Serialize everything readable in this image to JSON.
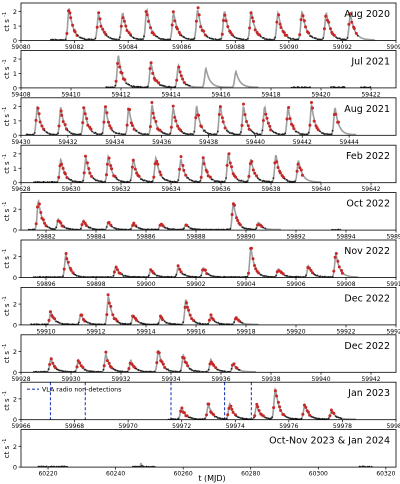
{
  "chart_data": {
    "type": "line",
    "xlabel": "t (MJD)",
    "ylabel_text": "ct s",
    "ylabel_exp": "-1",
    "colors": {
      "model": "#9e9e9e",
      "data": "#c62828",
      "nondet": "#1f3fbf"
    },
    "panels": [
      {
        "title": "Aug 2020",
        "xlim": [
          59080,
          59094
        ],
        "ylim": [
          0,
          2.6
        ],
        "yticks": [
          0,
          1,
          2
        ],
        "xticks": [
          59080,
          59082,
          59084,
          59086,
          59088,
          59090,
          59092,
          59094
        ],
        "peaks": [
          {
            "t": 59081.8,
            "a": 2.2
          },
          {
            "t": 59082.9,
            "a": 1.8
          },
          {
            "t": 59083.8,
            "a": 1.9
          },
          {
            "t": 59084.7,
            "a": 2.1
          },
          {
            "t": 59085.7,
            "a": 1.9
          },
          {
            "t": 59086.6,
            "a": 2.1
          },
          {
            "t": 59087.6,
            "a": 2.0
          },
          {
            "t": 59088.6,
            "a": 2.0
          },
          {
            "t": 59089.6,
            "a": 1.9
          },
          {
            "t": 59090.5,
            "a": 2.0
          },
          {
            "t": 59091.4,
            "a": 1.9
          },
          {
            "t": 59092.3,
            "a": 1.8
          }
        ],
        "obs": [
          [
            59081.1,
            59092.6
          ]
        ],
        "nondet": []
      },
      {
        "title": "Jul 2021",
        "xlim": [
          59408,
          59423
        ],
        "ylim": [
          0,
          2.6
        ],
        "yticks": [
          0,
          1,
          2
        ],
        "xticks": [
          59408,
          59410,
          59412,
          59414,
          59416,
          59418,
          59420,
          59422
        ],
        "peaks": [
          {
            "t": 59411.9,
            "a": 2.2
          },
          {
            "t": 59413.2,
            "a": 1.7
          },
          {
            "t": 59414.3,
            "a": 1.5
          },
          {
            "t": 59415.4,
            "a": 1.3
          },
          {
            "t": 59416.6,
            "a": 1.1
          }
        ],
        "obs": [
          [
            59411.4,
            59414.8
          ],
          [
            59418.8,
            59419.6
          ],
          [
            59420.4,
            59421.0
          ],
          [
            59421.6,
            59422.0
          ]
        ],
        "nondet": []
      },
      {
        "title": "Aug 2021",
        "xlim": [
          59430,
          59446
        ],
        "ylim": [
          0,
          2.6
        ],
        "yticks": [
          0,
          1,
          2
        ],
        "xticks": [
          59430,
          59432,
          59434,
          59436,
          59438,
          59440,
          59442,
          59444
        ],
        "peaks": [
          {
            "t": 59430.7,
            "a": 2.0
          },
          {
            "t": 59431.7,
            "a": 1.9
          },
          {
            "t": 59432.7,
            "a": 1.9
          },
          {
            "t": 59433.6,
            "a": 2.0
          },
          {
            "t": 59434.6,
            "a": 1.9
          },
          {
            "t": 59435.6,
            "a": 2.1
          },
          {
            "t": 59436.5,
            "a": 1.9
          },
          {
            "t": 59437.5,
            "a": 2.0
          },
          {
            "t": 59438.5,
            "a": 2.1
          },
          {
            "t": 59439.5,
            "a": 2.0
          },
          {
            "t": 59440.4,
            "a": 2.0
          },
          {
            "t": 59441.4,
            "a": 1.9
          },
          {
            "t": 59442.4,
            "a": 2.1
          },
          {
            "t": 59443.4,
            "a": 1.9
          }
        ],
        "obs": [
          [
            59430.2,
            59443.6
          ]
        ],
        "nondet": []
      },
      {
        "title": "Feb 2022",
        "xlim": [
          59628,
          59643
        ],
        "ylim": [
          0,
          2.6
        ],
        "yticks": [
          0,
          1,
          2
        ],
        "xticks": [
          59628,
          59630,
          59632,
          59634,
          59636,
          59638,
          59640,
          59642
        ],
        "peaks": [
          {
            "t": 59629.6,
            "a": 1.6
          },
          {
            "t": 59630.6,
            "a": 1.7
          },
          {
            "t": 59631.5,
            "a": 1.8
          },
          {
            "t": 59632.5,
            "a": 1.6
          },
          {
            "t": 59633.4,
            "a": 1.7
          },
          {
            "t": 59634.4,
            "a": 1.6
          },
          {
            "t": 59635.3,
            "a": 1.7
          },
          {
            "t": 59636.3,
            "a": 2.0
          },
          {
            "t": 59637.2,
            "a": 1.6
          },
          {
            "t": 59638.2,
            "a": 1.9
          },
          {
            "t": 59639.1,
            "a": 1.5
          }
        ],
        "obs": [
          [
            59628.5,
            59639.3
          ]
        ],
        "nondet": []
      },
      {
        "title": "Oct 2022",
        "xlim": [
          59881,
          59896
        ],
        "ylim": [
          0,
          3.6
        ],
        "yticks": [
          0,
          2
        ],
        "xticks": [
          59882,
          59884,
          59886,
          59888,
          59890,
          59892,
          59894,
          59896
        ],
        "peaks": [
          {
            "t": 59881.7,
            "a": 2.8
          },
          {
            "t": 59882.5,
            "a": 1.0
          },
          {
            "t": 59883.5,
            "a": 0.9
          },
          {
            "t": 59884.5,
            "a": 0.7
          },
          {
            "t": 59885.5,
            "a": 0.6
          },
          {
            "t": 59886.6,
            "a": 0.6
          },
          {
            "t": 59887.6,
            "a": 0.5
          },
          {
            "t": 59889.5,
            "a": 2.6
          },
          {
            "t": 59890.5,
            "a": 0.7
          }
        ],
        "obs": [
          [
            59881.3,
            59890.8
          ],
          [
            59893.4,
            59893.8
          ]
        ],
        "nondet": []
      },
      {
        "title": "Nov 2022",
        "xlim": [
          59895,
          59910
        ],
        "ylim": [
          0,
          3.6
        ],
        "yticks": [
          0,
          2
        ],
        "xticks": [
          59896,
          59898,
          59900,
          59902,
          59904,
          59906,
          59908,
          59910
        ],
        "peaks": [
          {
            "t": 59896.8,
            "a": 2.2
          },
          {
            "t": 59898.8,
            "a": 1.0
          },
          {
            "t": 59900.2,
            "a": 0.7
          },
          {
            "t": 59901.3,
            "a": 1.0
          },
          {
            "t": 59902.3,
            "a": 0.9
          },
          {
            "t": 59904.2,
            "a": 2.8
          },
          {
            "t": 59905.3,
            "a": 0.8
          },
          {
            "t": 59906.5,
            "a": 1.1
          },
          {
            "t": 59907.6,
            "a": 2.2
          }
        ],
        "obs": [
          [
            59895.5,
            59907.9
          ]
        ],
        "nondet": []
      },
      {
        "title": "Dec 2022",
        "xlim": [
          59909,
          59924
        ],
        "ylim": [
          0,
          3.6
        ],
        "yticks": [
          0,
          2
        ],
        "xticks": [
          59910,
          59912,
          59914,
          59916,
          59918,
          59920,
          59922,
          59924
        ],
        "peaks": [
          {
            "t": 59910.2,
            "a": 1.2
          },
          {
            "t": 59911.4,
            "a": 1.0
          },
          {
            "t": 59912.5,
            "a": 2.7
          },
          {
            "t": 59913.5,
            "a": 0.9
          },
          {
            "t": 59914.6,
            "a": 0.8
          },
          {
            "t": 59915.6,
            "a": 2.4
          },
          {
            "t": 59916.6,
            "a": 0.8
          },
          {
            "t": 59917.6,
            "a": 0.7
          }
        ],
        "obs": [
          [
            59909.4,
            59917.9
          ]
        ],
        "nondet": []
      },
      {
        "title": "Dec 2022",
        "xlim": [
          59928,
          59943
        ],
        "ylim": [
          0,
          3.6
        ],
        "yticks": [
          0,
          2
        ],
        "xticks": [
          59928,
          59930,
          59932,
          59934,
          59936,
          59938,
          59940,
          59942
        ],
        "peaks": [
          {
            "t": 59929.2,
            "a": 1.3
          },
          {
            "t": 59930.3,
            "a": 1.1
          },
          {
            "t": 59931.4,
            "a": 1.7
          },
          {
            "t": 59932.4,
            "a": 1.1
          },
          {
            "t": 59933.5,
            "a": 2.1
          },
          {
            "t": 59934.5,
            "a": 1.6
          },
          {
            "t": 59935.6,
            "a": 1.2
          },
          {
            "t": 59936.5,
            "a": 0.8
          }
        ],
        "obs": [
          [
            59928.5,
            59936.8
          ]
        ],
        "nondet": []
      },
      {
        "title": "Jan 2023",
        "xlim": [
          59966,
          59980
        ],
        "ylim": [
          0,
          3.6
        ],
        "yticks": [
          0,
          2
        ],
        "xticks": [
          59966,
          59968,
          59970,
          59972,
          59974,
          59976,
          59978,
          59980
        ],
        "legend": "VLA radio non-detections",
        "peaks": [
          {
            "t": 59972.0,
            "a": 1.1
          },
          {
            "t": 59973.0,
            "a": 1.4
          },
          {
            "t": 59973.8,
            "a": 1.5
          },
          {
            "t": 59974.8,
            "a": 1.3
          },
          {
            "t": 59975.5,
            "a": 2.9
          },
          {
            "t": 59976.6,
            "a": 1.4
          },
          {
            "t": 59977.6,
            "a": 0.8
          }
        ],
        "obs": [
          [
            59971.5,
            59978.0
          ]
        ],
        "nondet": [
          59967.1,
          59968.4,
          59971.6,
          59973.6,
          59974.6
        ]
      },
      {
        "title": "Oct-Nov 2023 & Jan 2024",
        "xlim": [
          60212,
          60323
        ],
        "ylim": [
          0,
          3.6
        ],
        "yticks": [
          0,
          2
        ],
        "xticks": [
          60220,
          60240,
          60260,
          60280,
          60300,
          60320
        ],
        "peaks": [
          {
            "t": 60247.5,
            "a": 0.35
          }
        ],
        "obs": [
          [
            60217,
            60226
          ],
          [
            60245,
            60252
          ],
          [
            60312,
            60316
          ]
        ],
        "nondet": []
      }
    ]
  }
}
